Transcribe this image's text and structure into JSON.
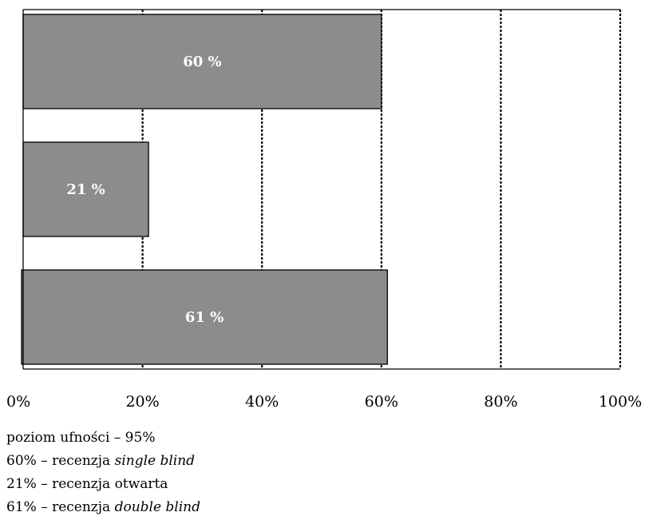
{
  "chart_data": {
    "type": "bar",
    "orientation": "horizontal",
    "categories": [
      "single blind",
      "otwarta",
      "double blind"
    ],
    "values": [
      60,
      21,
      61
    ],
    "data_labels": [
      "60 %",
      "21 %",
      "61 %"
    ],
    "xlim": [
      0,
      100
    ],
    "xticks": [
      0,
      20,
      40,
      60,
      80,
      100
    ],
    "xtick_labels": [
      "0%",
      "20%",
      "40%",
      "60%",
      "80%",
      "100%"
    ],
    "grid": "vertical dotted",
    "bar_color": "#8c8c8c",
    "label_color": "#ffffff"
  },
  "notes": [
    {
      "prefix": "poziom ufności – 95%",
      "italic": ""
    },
    {
      "prefix": "60% – recenzja ",
      "italic": "single blind"
    },
    {
      "prefix": "21% – recenzja otwarta",
      "italic": ""
    },
    {
      "prefix": "61% – recenzja ",
      "italic": "double blind"
    }
  ]
}
